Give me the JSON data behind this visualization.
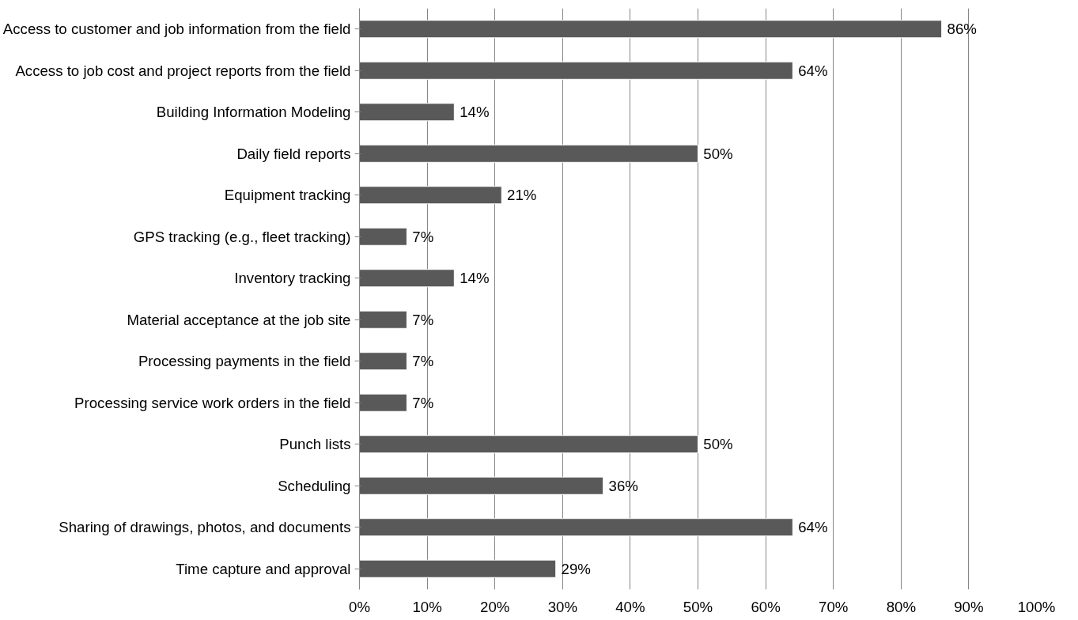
{
  "chart_data": {
    "type": "bar",
    "orientation": "horizontal",
    "categories": [
      "Access to customer and job information from the field",
      "Access to job cost and project reports from the field",
      "Building Information Modeling",
      "Daily field reports",
      "Equipment tracking",
      "GPS tracking (e.g., fleet tracking)",
      "Inventory tracking",
      "Material acceptance at the job site",
      "Processing payments in the field",
      "Processing service work orders in the field",
      "Punch lists",
      "Scheduling",
      "Sharing of drawings, photos, and documents",
      "Time capture and approval"
    ],
    "values": [
      86,
      64,
      14,
      50,
      21,
      7,
      14,
      7,
      7,
      7,
      50,
      36,
      64,
      29
    ],
    "value_labels": [
      "86%",
      "64%",
      "14%",
      "50%",
      "21%",
      "7%",
      "14%",
      "7%",
      "7%",
      "7%",
      "50%",
      "36%",
      "64%",
      "29%"
    ],
    "color": "#595959",
    "xlim": [
      0,
      100
    ],
    "xticks": [
      {
        "value": 0,
        "label": "0%"
      },
      {
        "value": 10,
        "label": "10%"
      },
      {
        "value": 20,
        "label": "20%"
      },
      {
        "value": 30,
        "label": "30%"
      },
      {
        "value": 40,
        "label": "40%"
      },
      {
        "value": 50,
        "label": "50%"
      },
      {
        "value": 60,
        "label": "60%"
      },
      {
        "value": 70,
        "label": "70%"
      },
      {
        "value": 80,
        "label": "80%"
      },
      {
        "value": 90,
        "label": "90%"
      },
      {
        "value": 100,
        "label": "100%"
      }
    ],
    "grid": "x"
  }
}
